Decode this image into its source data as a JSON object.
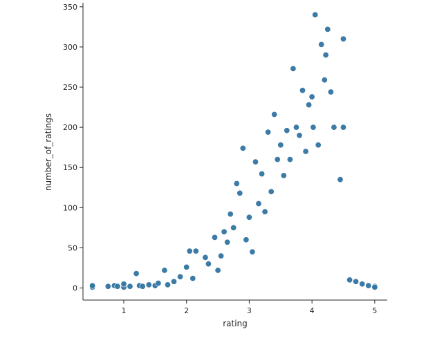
{
  "chart_data": {
    "type": "scatter",
    "title": "",
    "xlabel": "rating",
    "ylabel": "number_of_ratings",
    "xlim": [
      0.35,
      5.2
    ],
    "ylim": [
      -15,
      355
    ],
    "x_ticks": [
      1,
      2,
      3,
      4,
      5
    ],
    "x_tick_labels": [
      "1",
      "2",
      "3",
      "4",
      "5"
    ],
    "y_ticks": [
      0,
      50,
      100,
      150,
      200,
      250,
      300,
      350
    ],
    "y_tick_labels": [
      "0",
      "50",
      "100",
      "150",
      "200",
      "250",
      "300",
      "350"
    ],
    "grid": false,
    "legend": "none",
    "color": "#3274a1",
    "points": [
      [
        0.5,
        1
      ],
      [
        0.5,
        3
      ],
      [
        0.75,
        2
      ],
      [
        0.85,
        3
      ],
      [
        0.9,
        2
      ],
      [
        1.0,
        1
      ],
      [
        1.0,
        5
      ],
      [
        1.1,
        2
      ],
      [
        1.2,
        18
      ],
      [
        1.25,
        3
      ],
      [
        1.3,
        2
      ],
      [
        1.4,
        4
      ],
      [
        1.5,
        3
      ],
      [
        1.55,
        6
      ],
      [
        1.65,
        22
      ],
      [
        1.7,
        4
      ],
      [
        1.8,
        8
      ],
      [
        1.9,
        14
      ],
      [
        2.0,
        26
      ],
      [
        2.05,
        46
      ],
      [
        2.1,
        12
      ],
      [
        2.15,
        46
      ],
      [
        2.3,
        38
      ],
      [
        2.35,
        30
      ],
      [
        2.45,
        63
      ],
      [
        2.5,
        22
      ],
      [
        2.55,
        40
      ],
      [
        2.6,
        70
      ],
      [
        2.65,
        57
      ],
      [
        2.7,
        92
      ],
      [
        2.75,
        75
      ],
      [
        2.8,
        130
      ],
      [
        2.85,
        118
      ],
      [
        2.9,
        174
      ],
      [
        2.95,
        60
      ],
      [
        3.0,
        88
      ],
      [
        3.05,
        45
      ],
      [
        3.1,
        157
      ],
      [
        3.15,
        105
      ],
      [
        3.2,
        142
      ],
      [
        3.25,
        95
      ],
      [
        3.3,
        194
      ],
      [
        3.35,
        120
      ],
      [
        3.4,
        216
      ],
      [
        3.45,
        160
      ],
      [
        3.5,
        178
      ],
      [
        3.55,
        140
      ],
      [
        3.6,
        196
      ],
      [
        3.65,
        160
      ],
      [
        3.7,
        273
      ],
      [
        3.75,
        200
      ],
      [
        3.8,
        190
      ],
      [
        3.85,
        246
      ],
      [
        3.9,
        170
      ],
      [
        3.95,
        228
      ],
      [
        4.0,
        238
      ],
      [
        4.02,
        200
      ],
      [
        4.05,
        340
      ],
      [
        4.1,
        178
      ],
      [
        4.15,
        303
      ],
      [
        4.2,
        259
      ],
      [
        4.22,
        290
      ],
      [
        4.25,
        322
      ],
      [
        4.3,
        244
      ],
      [
        4.35,
        200
      ],
      [
        4.45,
        135
      ],
      [
        4.5,
        310
      ],
      [
        4.5,
        200
      ],
      [
        4.6,
        10
      ],
      [
        4.7,
        8
      ],
      [
        4.8,
        5
      ],
      [
        4.9,
        3
      ],
      [
        5.0,
        2
      ],
      [
        5.0,
        1
      ]
    ]
  }
}
